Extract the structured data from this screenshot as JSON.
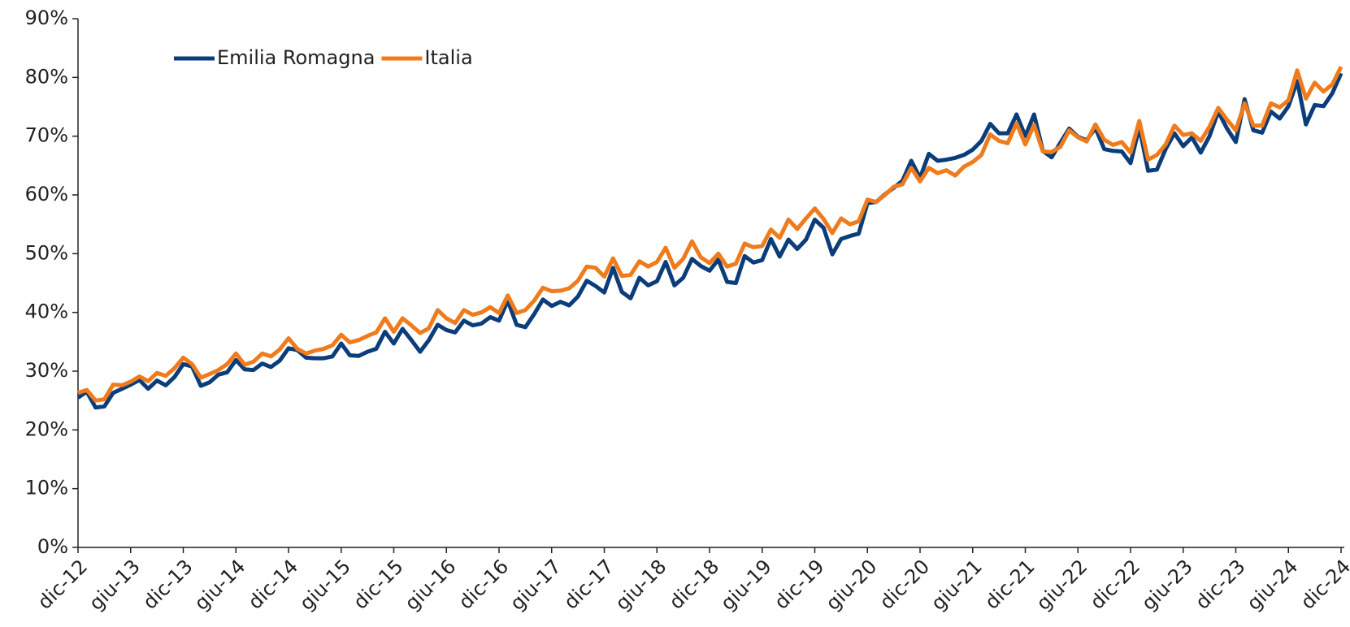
{
  "chart_data": {
    "type": "line",
    "categories": [
      "dic-12",
      null,
      null,
      null,
      null,
      null,
      "giu-13",
      null,
      null,
      null,
      null,
      null,
      "dic-13",
      null,
      null,
      null,
      null,
      null,
      "giu-14",
      null,
      null,
      null,
      null,
      null,
      "dic-14",
      null,
      null,
      null,
      null,
      null,
      "giu-15",
      null,
      null,
      null,
      null,
      null,
      "dic-15",
      null,
      null,
      null,
      null,
      null,
      "giu-16",
      null,
      null,
      null,
      null,
      null,
      "dic-16",
      null,
      null,
      null,
      null,
      null,
      "giu-17",
      null,
      null,
      null,
      null,
      null,
      "dic-17",
      null,
      null,
      null,
      null,
      null,
      "giu-18",
      null,
      null,
      null,
      null,
      null,
      "dic-18",
      null,
      null,
      null,
      null,
      null,
      "giu-19",
      null,
      null,
      null,
      null,
      null,
      "dic-19",
      null,
      null,
      null,
      null,
      null,
      "giu-20",
      null,
      null,
      null,
      null,
      null,
      "dic-20",
      null,
      null,
      null,
      null,
      null,
      "giu-21",
      null,
      null,
      null,
      null,
      null,
      "dic-21",
      null,
      null,
      null,
      null,
      null,
      "giu-22",
      null,
      null,
      null,
      null,
      null,
      "dic-22",
      null,
      null,
      null,
      null,
      null,
      "giu-23",
      null,
      null,
      null,
      null,
      null,
      "dic-23",
      null,
      null,
      null,
      null,
      null,
      "giu-24",
      null,
      null,
      null,
      null,
      null,
      "dic-24"
    ],
    "series": [
      {
        "name": "Emilia Romagna",
        "color": "#0a3d7a",
        "values": [
          25.5,
          26.5,
          23.8,
          24.0,
          26.3,
          27.0,
          27.7,
          28.5,
          27.0,
          28.4,
          27.6,
          29.0,
          31.2,
          30.8,
          27.5,
          28.1,
          29.4,
          29.8,
          31.9,
          30.3,
          30.2,
          31.3,
          30.7,
          31.8,
          33.9,
          33.6,
          32.3,
          32.2,
          32.2,
          32.5,
          34.7,
          32.7,
          32.6,
          33.3,
          33.8,
          36.7,
          34.7,
          37.2,
          35.3,
          33.3,
          35.3,
          37.9,
          37.0,
          36.6,
          38.6,
          37.8,
          38.1,
          39.2,
          38.6,
          42.0,
          37.9,
          37.5,
          39.7,
          42.2,
          41.1,
          41.8,
          41.2,
          42.7,
          45.4,
          44.5,
          43.4,
          47.6,
          43.5,
          42.4,
          45.9,
          44.6,
          45.3,
          48.6,
          44.6,
          45.9,
          49.1,
          47.9,
          47.1,
          49.0,
          45.2,
          45.0,
          49.6,
          48.5,
          48.9,
          52.5,
          49.5,
          52.4,
          50.8,
          52.4,
          55.8,
          54.4,
          49.9,
          52.5,
          53.0,
          53.4,
          58.6,
          58.8,
          60.1,
          61.2,
          62.4,
          65.8,
          62.9,
          67.0,
          65.8,
          66.0,
          66.3,
          66.8,
          67.7,
          69.2,
          72.1,
          70.5,
          70.5,
          73.7,
          70.0,
          73.7,
          67.5,
          66.4,
          68.9,
          71.3,
          69.9,
          69.3,
          71.4,
          67.8,
          67.5,
          67.4,
          65.4,
          71.5,
          64.1,
          64.3,
          67.8,
          70.5,
          68.3,
          69.8,
          67.2,
          70.0,
          74.2,
          71.3,
          69.0,
          76.3,
          71.0,
          70.6,
          74.2,
          73.0,
          75.1,
          79.4,
          72.0,
          75.3,
          75.1,
          77.3,
          80.7
        ]
      },
      {
        "name": "Italia",
        "color": "#f07b1c",
        "values": [
          26.3,
          26.8,
          25.0,
          25.2,
          27.7,
          27.6,
          28.2,
          29.1,
          28.3,
          29.7,
          29.2,
          30.5,
          32.3,
          31.2,
          28.9,
          29.5,
          30.2,
          31.2,
          33.0,
          31.1,
          31.6,
          33.0,
          32.5,
          33.7,
          35.6,
          33.8,
          33.0,
          33.5,
          33.8,
          34.4,
          36.2,
          34.9,
          35.3,
          36.0,
          36.6,
          39.0,
          36.7,
          39.0,
          37.8,
          36.5,
          37.3,
          40.4,
          39.0,
          38.2,
          40.4,
          39.6,
          40.0,
          40.9,
          39.9,
          42.9,
          39.9,
          40.4,
          42.0,
          44.2,
          43.6,
          43.7,
          44.1,
          45.4,
          47.8,
          47.6,
          46.1,
          49.2,
          46.2,
          46.4,
          48.7,
          47.8,
          48.6,
          51.0,
          47.6,
          49.1,
          52.1,
          49.4,
          48.4,
          50.0,
          47.8,
          48.3,
          51.7,
          51.1,
          51.3,
          54.1,
          52.7,
          55.8,
          54.2,
          56.0,
          57.7,
          55.9,
          53.5,
          56.0,
          55.0,
          55.5,
          59.2,
          58.8,
          60.0,
          61.4,
          61.8,
          64.6,
          62.3,
          64.6,
          63.7,
          64.2,
          63.3,
          64.8,
          65.6,
          66.8,
          70.3,
          69.2,
          68.8,
          72.2,
          68.6,
          71.9,
          67.4,
          67.3,
          68.2,
          71.0,
          69.8,
          69.1,
          72.0,
          69.4,
          68.5,
          69.0,
          67.2,
          72.6,
          66.0,
          66.8,
          68.6,
          71.8,
          70.2,
          70.5,
          69.2,
          71.6,
          74.8,
          72.8,
          71.0,
          75.6,
          71.8,
          71.8,
          75.6,
          74.9,
          76.1,
          81.2,
          76.4,
          79.1,
          77.6,
          78.8,
          81.8
        ]
      }
    ],
    "ylim": [
      0,
      90
    ],
    "yticks": [
      {
        "value": 0,
        "label": "0%"
      },
      {
        "value": 10,
        "label": "10%"
      },
      {
        "value": 20,
        "label": "20%"
      },
      {
        "value": 30,
        "label": "30%"
      },
      {
        "value": 40,
        "label": "40%"
      },
      {
        "value": 50,
        "label": "50%"
      },
      {
        "value": 60,
        "label": "60%"
      },
      {
        "value": 70,
        "label": "70%"
      },
      {
        "value": 80,
        "label": "80%"
      },
      {
        "value": 90,
        "label": "90%"
      }
    ],
    "grid": false,
    "legend": "upper left"
  }
}
